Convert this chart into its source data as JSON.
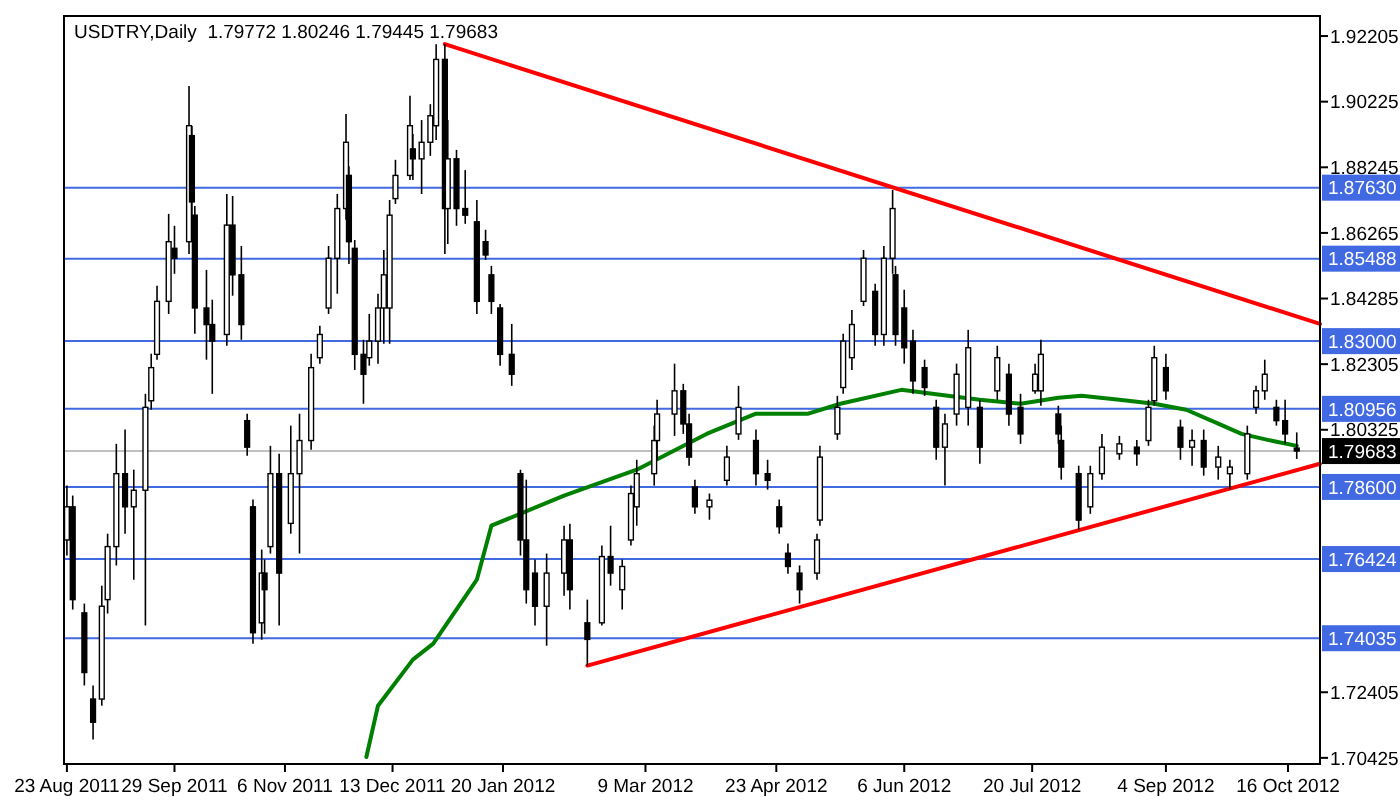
{
  "chart_data": {
    "type": "candlestick",
    "title": "USDTRY,Daily  1.79772 1.80246 1.79445 1.79683",
    "x": [
      "2011-08-23",
      "2011-08-25",
      "2011-08-29",
      "2011-09-01",
      "2011-09-04",
      "2011-09-06",
      "2011-09-09",
      "2011-09-12",
      "2011-09-15",
      "2011-09-19",
      "2011-09-21",
      "2011-09-23",
      "2011-09-27",
      "2011-09-29",
      "2011-10-04",
      "2011-10-05",
      "2011-10-06",
      "2011-10-10",
      "2011-10-12",
      "2011-10-17",
      "2011-10-19",
      "2011-10-22",
      "2011-10-24",
      "2011-10-26",
      "2011-10-29",
      "2011-10-30",
      "2011-11-01",
      "2011-11-04",
      "2011-11-08",
      "2011-11-11",
      "2011-11-15",
      "2011-11-18",
      "2011-11-21",
      "2011-11-24",
      "2011-11-27",
      "2011-11-28",
      "2011-11-30",
      "2011-12-03",
      "2011-12-05",
      "2011-12-08",
      "2011-12-10",
      "2011-12-12",
      "2011-12-14",
      "2011-12-19",
      "2011-12-20",
      "2011-12-23",
      "2011-12-26",
      "2011-12-28",
      "2011-12-31",
      "2012-01-01",
      "2012-01-04",
      "2012-01-07",
      "2012-01-11",
      "2012-01-14",
      "2012-01-16",
      "2012-01-19",
      "2012-01-23",
      "2012-01-26",
      "2012-01-28",
      "2012-01-31",
      "2012-02-04",
      "2012-02-10",
      "2012-02-12",
      "2012-02-18",
      "2012-02-23",
      "2012-02-26",
      "2012-03-01",
      "2012-03-04",
      "2012-03-06",
      "2012-03-12",
      "2012-03-13",
      "2012-03-19",
      "2012-03-22",
      "2012-03-24",
      "2012-03-26",
      "2012-03-31",
      "2012-04-06",
      "2012-04-10",
      "2012-04-16",
      "2012-04-20",
      "2012-04-24",
      "2012-04-27",
      "2012-05-01",
      "2012-05-07",
      "2012-05-08",
      "2012-05-14",
      "2012-05-16",
      "2012-05-19",
      "2012-05-23",
      "2012-05-27",
      "2012-05-30",
      "2012-06-02",
      "2012-06-03",
      "2012-06-06",
      "2012-06-09",
      "2012-06-13",
      "2012-06-17",
      "2012-06-20",
      "2012-06-24",
      "2012-06-28",
      "2012-07-02",
      "2012-07-08",
      "2012-07-12",
      "2012-07-16",
      "2012-07-21",
      "2012-07-23",
      "2012-07-29",
      "2012-07-30",
      "2012-08-05",
      "2012-08-09",
      "2012-08-13",
      "2012-08-19",
      "2012-08-25",
      "2012-08-29",
      "2012-08-31",
      "2012-09-04",
      "2012-09-09",
      "2012-09-13",
      "2012-09-17",
      "2012-09-22",
      "2012-09-26",
      "2012-10-02",
      "2012-10-05",
      "2012-10-08",
      "2012-10-12",
      "2012-10-15",
      "2012-10-19"
    ],
    "ohlc": [
      [
        1.77,
        1.7864,
        1.7653,
        1.78
      ],
      [
        1.78,
        1.7834,
        1.749,
        1.752
      ],
      [
        1.748,
        1.7508,
        1.7261,
        1.73
      ],
      [
        1.722,
        1.7261,
        1.7098,
        1.715
      ],
      [
        1.722,
        1.7562,
        1.72,
        1.75
      ],
      [
        1.752,
        1.7719,
        1.7478,
        1.768
      ],
      [
        1.768,
        1.799,
        1.7623,
        1.79
      ],
      [
        1.79,
        1.8033,
        1.7719,
        1.78
      ],
      [
        1.78,
        1.7912,
        1.758,
        1.785
      ],
      [
        1.785,
        1.8141,
        1.7442,
        1.81
      ],
      [
        1.812,
        1.8262,
        1.8093,
        1.822
      ],
      [
        1.826,
        1.8467,
        1.8244,
        1.842
      ],
      [
        1.842,
        1.8684,
        1.8382,
        1.86
      ],
      [
        1.858,
        1.8648,
        1.8503,
        1.855
      ],
      [
        1.86,
        1.907,
        1.8563,
        1.895
      ],
      [
        1.892,
        1.8949,
        1.8617,
        1.872
      ],
      [
        1.868,
        1.8708,
        1.8322,
        1.84
      ],
      [
        1.84,
        1.8515,
        1.8244,
        1.835
      ],
      [
        1.835,
        1.8425,
        1.8141,
        1.83
      ],
      [
        1.832,
        1.8744,
        1.8286,
        1.865
      ],
      [
        1.865,
        1.8738,
        1.8437,
        1.85
      ],
      [
        1.85,
        1.8587,
        1.8304,
        1.835
      ],
      [
        1.806,
        1.8081,
        1.7954,
        1.798
      ],
      [
        1.78,
        1.7822,
        1.7387,
        1.742
      ],
      [
        1.745,
        1.7671,
        1.7399,
        1.76
      ],
      [
        1.76,
        1.7641,
        1.7417,
        1.755
      ],
      [
        1.768,
        1.7984,
        1.7659,
        1.79
      ],
      [
        1.79,
        1.796,
        1.7442,
        1.76
      ],
      [
        1.775,
        1.8045,
        1.7719,
        1.79
      ],
      [
        1.79,
        1.8081,
        1.7659,
        1.8
      ],
      [
        1.8,
        1.8262,
        1.7972,
        1.822
      ],
      [
        1.825,
        1.8346,
        1.8232,
        1.832
      ],
      [
        1.84,
        1.8587,
        1.8382,
        1.855
      ],
      [
        1.855,
        1.8744,
        1.8443,
        1.87
      ],
      [
        1.87,
        1.8985,
        1.8666,
        1.89
      ],
      [
        1.88,
        1.8828,
        1.8533,
        1.86
      ],
      [
        1.858,
        1.8605,
        1.8213,
        1.826
      ],
      [
        1.826,
        1.8304,
        1.8111,
        1.82
      ],
      [
        1.825,
        1.8382,
        1.8226,
        1.83
      ],
      [
        1.83,
        1.8443,
        1.8232,
        1.84
      ],
      [
        1.84,
        1.8575,
        1.8292,
        1.85
      ],
      [
        1.84,
        1.8726,
        1.8292,
        1.868
      ],
      [
        1.873,
        1.8847,
        1.8714,
        1.88
      ],
      [
        1.88,
        1.904,
        1.8786,
        1.895
      ],
      [
        1.888,
        1.8925,
        1.8786,
        1.885
      ],
      [
        1.885,
        1.8967,
        1.8744,
        1.89
      ],
      [
        1.89,
        1.9015,
        1.8859,
        1.898
      ],
      [
        1.895,
        1.9196,
        1.8907,
        1.915
      ],
      [
        1.915,
        1.9196,
        1.8563,
        1.87
      ],
      [
        1.87,
        1.8967,
        1.8593,
        1.885
      ],
      [
        1.885,
        1.8877,
        1.8648,
        1.87
      ],
      [
        1.87,
        1.8816,
        1.8654,
        1.868
      ],
      [
        1.866,
        1.8726,
        1.8382,
        1.842
      ],
      [
        1.86,
        1.8636,
        1.8545,
        1.856
      ],
      [
        1.85,
        1.8527,
        1.8382,
        1.842
      ],
      [
        1.84,
        1.8412,
        1.8226,
        1.826
      ],
      [
        1.826,
        1.8352,
        1.8165,
        1.82
      ],
      [
        1.79,
        1.7912,
        1.7653,
        1.77
      ],
      [
        1.77,
        1.7882,
        1.7508,
        1.755
      ],
      [
        1.76,
        1.7641,
        1.7442,
        1.75
      ],
      [
        1.75,
        1.7659,
        1.7381,
        1.76
      ],
      [
        1.76,
        1.7743,
        1.7532,
        1.77
      ],
      [
        1.77,
        1.7749,
        1.749,
        1.755
      ],
      [
        1.745,
        1.752,
        1.7321,
        1.74
      ],
      [
        1.745,
        1.7683,
        1.7442,
        1.765
      ],
      [
        1.765,
        1.7743,
        1.7562,
        1.76
      ],
      [
        1.755,
        1.7641,
        1.749,
        1.762
      ],
      [
        1.77,
        1.7864,
        1.7683,
        1.784
      ],
      [
        1.78,
        1.7942,
        1.7743,
        1.79
      ],
      [
        1.79,
        1.8045,
        1.7864,
        1.8
      ],
      [
        1.8,
        1.8123,
        1.7942,
        1.808
      ],
      [
        1.808,
        1.8232,
        1.8014,
        1.815
      ],
      [
        1.815,
        1.8171,
        1.802,
        1.805
      ],
      [
        1.805,
        1.8081,
        1.7924,
        1.795
      ],
      [
        1.786,
        1.7882,
        1.7779,
        1.78
      ],
      [
        1.78,
        1.784,
        1.7761,
        1.782
      ],
      [
        1.788,
        1.7984,
        1.7864,
        1.795
      ],
      [
        1.802,
        1.8165,
        1.8002,
        1.81
      ],
      [
        1.8,
        1.8033,
        1.7864,
        1.79
      ],
      [
        1.79,
        1.7942,
        1.7852,
        1.788
      ],
      [
        1.78,
        1.7822,
        1.7719,
        1.774
      ],
      [
        1.766,
        1.7689,
        1.7598,
        1.762
      ],
      [
        1.76,
        1.7623,
        1.7508,
        1.755
      ],
      [
        1.76,
        1.7719,
        1.758,
        1.77
      ],
      [
        1.776,
        1.7984,
        1.7743,
        1.795
      ],
      [
        1.802,
        1.8135,
        1.8002,
        1.81
      ],
      [
        1.816,
        1.8322,
        1.8141,
        1.83
      ],
      [
        1.825,
        1.8394,
        1.8213,
        1.835
      ],
      [
        1.842,
        1.8575,
        1.8406,
        1.855
      ],
      [
        1.845,
        1.8473,
        1.8286,
        1.832
      ],
      [
        1.832,
        1.8587,
        1.8286,
        1.855
      ],
      [
        1.855,
        1.8756,
        1.8503,
        1.87
      ],
      [
        1.85,
        1.8527,
        1.8286,
        1.832
      ],
      [
        1.84,
        1.8455,
        1.8232,
        1.828
      ],
      [
        1.83,
        1.8334,
        1.8141,
        1.818
      ],
      [
        1.822,
        1.8244,
        1.8135,
        1.816
      ],
      [
        1.81,
        1.8123,
        1.7942,
        1.798
      ],
      [
        1.798,
        1.8081,
        1.7864,
        1.805
      ],
      [
        1.808,
        1.8232,
        1.8045,
        1.82
      ],
      [
        1.81,
        1.8334,
        1.8045,
        1.828
      ],
      [
        1.81,
        1.8123,
        1.793,
        1.798
      ],
      [
        1.815,
        1.8286,
        1.8123,
        1.825
      ],
      [
        1.82,
        1.8232,
        1.8045,
        1.808
      ],
      [
        1.81,
        1.8141,
        1.799,
        1.802
      ],
      [
        1.815,
        1.8232,
        1.8141,
        1.82
      ],
      [
        1.815,
        1.8304,
        1.8105,
        1.826
      ],
      [
        1.808,
        1.8105,
        1.799,
        1.802
      ],
      [
        1.8,
        1.8045,
        1.7882,
        1.792
      ],
      [
        1.79,
        1.7924,
        1.7731,
        1.776
      ],
      [
        1.78,
        1.7924,
        1.7779,
        1.79
      ],
      [
        1.79,
        1.802,
        1.7882,
        1.798
      ],
      [
        1.796,
        1.8014,
        1.7942,
        1.799
      ],
      [
        1.798,
        1.8002,
        1.7924,
        1.796
      ],
      [
        1.8,
        1.8123,
        1.7984,
        1.81
      ],
      [
        1.812,
        1.8286,
        1.8105,
        1.825
      ],
      [
        1.822,
        1.8262,
        1.8123,
        1.815
      ],
      [
        1.804,
        1.8063,
        1.7942,
        1.798
      ],
      [
        1.798,
        1.8033,
        1.7924,
        1.8
      ],
      [
        1.8,
        1.8033,
        1.7894,
        1.792
      ],
      [
        1.792,
        1.7984,
        1.7882,
        1.795
      ],
      [
        1.79,
        1.7942,
        1.7852,
        1.792
      ],
      [
        1.79,
        1.8045,
        1.7882,
        1.802
      ],
      [
        1.81,
        1.8165,
        1.8081,
        1.815
      ],
      [
        1.815,
        1.8244,
        1.8123,
        1.82
      ],
      [
        1.81,
        1.8123,
        1.8045,
        1.806
      ],
      [
        1.806,
        1.8123,
        1.799,
        1.802
      ],
      [
        1.79772,
        1.80246,
        1.79445,
        1.79683
      ]
    ],
    "series": [
      {
        "type": "line",
        "color": "#008000",
        "x": [
          "2011-12-04",
          "2011-12-08",
          "2011-12-20",
          "2011-12-27",
          "2012-01-11",
          "2012-01-16",
          "2012-02-10",
          "2012-03-06",
          "2012-03-30",
          "2012-04-16",
          "2012-05-04",
          "2012-05-15",
          "2012-06-05",
          "2012-06-21",
          "2012-07-02",
          "2012-07-16",
          "2012-07-29",
          "2012-08-06",
          "2012-08-19",
          "2012-08-31",
          "2012-09-11",
          "2012-09-22",
          "2012-09-30",
          "2012-10-09",
          "2012-10-19"
        ],
        "values": [
          1.7045,
          1.72,
          1.7339,
          1.7387,
          1.758,
          1.7743,
          1.7834,
          1.7912,
          1.802,
          1.8081,
          1.8081,
          1.8111,
          1.8153,
          1.8135,
          1.8123,
          1.8111,
          1.8129,
          1.8135,
          1.8123,
          1.8111,
          1.8093,
          1.8051,
          1.802,
          1.8002,
          1.7984
        ]
      },
      {
        "type": "line",
        "color": "#ff0000",
        "x": [
          "2011-12-31",
          "2012-10-27"
        ],
        "values": [
          1.9196,
          1.8352
        ]
      },
      {
        "type": "line",
        "color": "#ff0000",
        "x": [
          "2012-02-18",
          "2012-10-27"
        ],
        "values": [
          1.7321,
          1.793
        ]
      }
    ],
    "xlim": [
      "2011-08-22",
      "2012-10-27"
    ],
    "xticks": [
      {
        "value": "2011-08-23",
        "label": "23 Aug 2011"
      },
      {
        "value": "2011-09-29",
        "label": "29 Sep 2011"
      },
      {
        "value": "2011-11-06",
        "label": "6 Nov 2011"
      },
      {
        "value": "2011-12-13",
        "label": "13 Dec 2011"
      },
      {
        "value": "2012-01-20",
        "label": "20 Jan 2012"
      },
      {
        "value": "2012-03-09",
        "label": "9 Mar 2012"
      },
      {
        "value": "2012-04-23",
        "label": "23 Apr 2012"
      },
      {
        "value": "2012-06-06",
        "label": "6 Jun 2012"
      },
      {
        "value": "2012-07-20",
        "label": "20 Jul 2012"
      },
      {
        "value": "2012-09-04",
        "label": "4 Sep 2012"
      },
      {
        "value": "2012-10-16",
        "label": "16 Oct 2012"
      }
    ],
    "ylim": [
      1.7024,
      1.9281
    ],
    "yticks": [
      {
        "value": 1.92205,
        "label": "1.92205"
      },
      {
        "value": 1.90225,
        "label": "1.90225"
      },
      {
        "value": 1.88245,
        "label": "1.88245"
      },
      {
        "value": 1.86265,
        "label": "1.86265"
      },
      {
        "value": 1.84285,
        "label": "1.84285"
      },
      {
        "value": 1.82305,
        "label": "1.82305"
      },
      {
        "value": 1.80325,
        "label": "1.80325"
      },
      {
        "value": 1.72405,
        "label": "1.72405"
      },
      {
        "value": 1.70425,
        "label": "1.70425"
      }
    ],
    "ref_lines": [
      {
        "axis": "y",
        "value": 1.8763,
        "label": "1.87630",
        "color": "#4169e1"
      },
      {
        "axis": "y",
        "value": 1.85488,
        "label": "1.85488",
        "color": "#4169e1"
      },
      {
        "axis": "y",
        "value": 1.83,
        "label": "1.83000",
        "color": "#4169e1"
      },
      {
        "axis": "y",
        "value": 1.80956,
        "label": "1.80956",
        "color": "#4169e1"
      },
      {
        "axis": "y",
        "value": 1.786,
        "label": "1.78600",
        "color": "#4169e1"
      },
      {
        "axis": "y",
        "value": 1.76424,
        "label": "1.76424",
        "color": "#4169e1"
      },
      {
        "axis": "y",
        "value": 1.74035,
        "label": "1.74035",
        "color": "#4169e1"
      },
      {
        "axis": "y",
        "value": 1.79683,
        "label": "1.79683",
        "color": "#c0c0c0"
      }
    ]
  }
}
